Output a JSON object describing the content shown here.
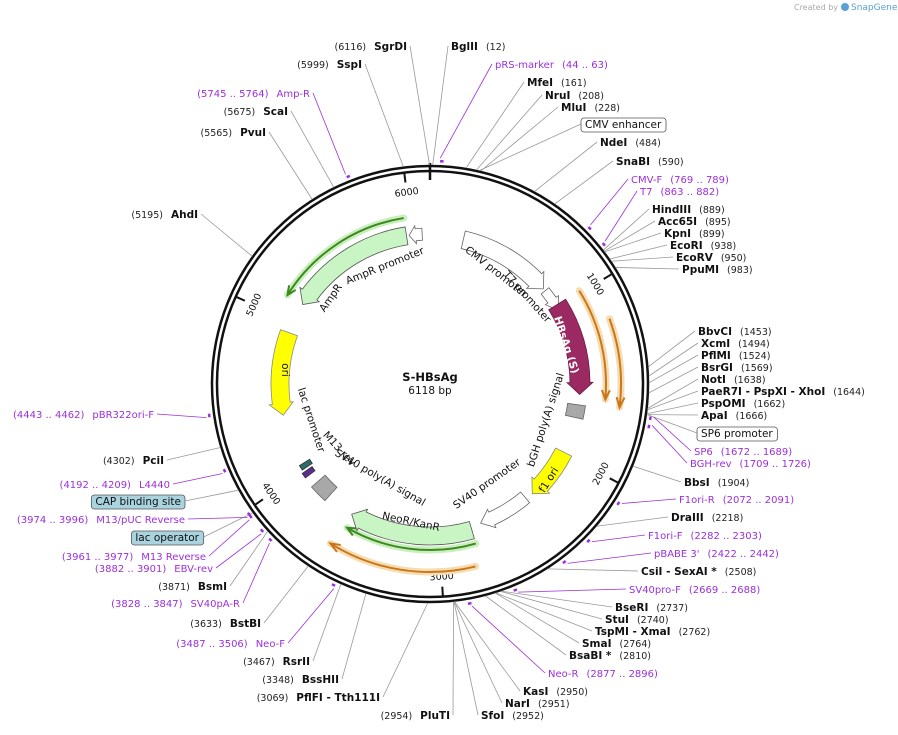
{
  "header": {
    "credit": "Created by",
    "brand": "SnapGene"
  },
  "map": {
    "name": "S-HBsAg",
    "size": "6118 bp",
    "ruler": [
      "1000",
      "2000",
      "3000",
      "4000",
      "5000",
      "6000"
    ],
    "sites": [
      {
        "name": "SgrDI",
        "position": "(6116)",
        "kind": "enzyme"
      },
      {
        "name": "SspI",
        "position": "(5999)",
        "kind": "enzyme"
      },
      {
        "name": "Amp-R",
        "position": "(5745 .. 5764)",
        "kind": "primer"
      },
      {
        "name": "ScaI",
        "position": "(5675)",
        "kind": "enzyme"
      },
      {
        "name": "PvuI",
        "position": "(5565)",
        "kind": "enzyme"
      },
      {
        "name": "AhdI",
        "position": "(5195)",
        "kind": "enzyme"
      },
      {
        "name": "pBR322ori-F",
        "position": "(4443 .. 4462)",
        "kind": "primer"
      },
      {
        "name": "PciI",
        "position": "(4302)",
        "kind": "enzyme"
      },
      {
        "name": "L4440",
        "position": "(4192 .. 4209)",
        "kind": "primer"
      },
      {
        "name": "M13/pUC Reverse",
        "position": "(3974 .. 3996)",
        "kind": "primer"
      },
      {
        "name": "M13 Reverse",
        "position": "(3961 .. 3977)",
        "kind": "primer"
      },
      {
        "name": "EBV-rev",
        "position": "(3882 .. 3901)",
        "kind": "primer"
      },
      {
        "name": "BsmI",
        "position": "(3871)",
        "kind": "enzyme"
      },
      {
        "name": "SV40pA-R",
        "position": "(3828 .. 3847)",
        "kind": "primer"
      },
      {
        "name": "BstBI",
        "position": "(3633)",
        "kind": "enzyme"
      },
      {
        "name": "Neo-F",
        "position": "(3487 .. 3506)",
        "kind": "primer"
      },
      {
        "name": "RsrII",
        "position": "(3467)",
        "kind": "enzyme"
      },
      {
        "name": "BssHII",
        "position": "(3348)",
        "kind": "enzyme"
      },
      {
        "name": "PflFI - Tth111I",
        "position": "(3069)",
        "kind": "enzyme"
      },
      {
        "name": "PluTI",
        "position": "(2954)",
        "kind": "enzyme"
      },
      {
        "name": "SfoI",
        "position": "(2952)",
        "kind": "enzyme"
      },
      {
        "name": "NarI",
        "position": "(2951)",
        "kind": "enzyme"
      },
      {
        "name": "KasI",
        "position": "(2950)",
        "kind": "enzyme"
      },
      {
        "name": "Neo-R",
        "position": "(2877 .. 2896)",
        "kind": "primer"
      },
      {
        "name": "BsaBI *",
        "position": "(2810)",
        "kind": "enzyme"
      },
      {
        "name": "SmaI",
        "position": "(2764)",
        "kind": "enzyme"
      },
      {
        "name": "TspMI - XmaI",
        "position": "(2762)",
        "kind": "enzyme"
      },
      {
        "name": "StuI",
        "position": "(2740)",
        "kind": "enzyme"
      },
      {
        "name": "BseRI",
        "position": "(2737)",
        "kind": "enzyme"
      },
      {
        "name": "SV40pro-F",
        "position": "(2669 .. 2688)",
        "kind": "primer"
      },
      {
        "name": "CsiI - SexAI *",
        "position": "(2508)",
        "kind": "enzyme"
      },
      {
        "name": "pBABE 3'",
        "position": "(2422 .. 2442)",
        "kind": "primer"
      },
      {
        "name": "F1ori-F",
        "position": "(2282 .. 2303)",
        "kind": "primer"
      },
      {
        "name": "DraIII",
        "position": "(2218)",
        "kind": "enzyme"
      },
      {
        "name": "F1ori-R",
        "position": "(2072 .. 2091)",
        "kind": "primer"
      },
      {
        "name": "BbsI",
        "position": "(1904)",
        "kind": "enzyme"
      },
      {
        "name": "BGH-rev",
        "position": "(1709 .. 1726)",
        "kind": "primer"
      },
      {
        "name": "SP6",
        "position": "(1672 .. 1689)",
        "kind": "primer"
      },
      {
        "name": "ApaI",
        "position": "(1666)",
        "kind": "enzyme"
      },
      {
        "name": "PspOMI",
        "position": "(1662)",
        "kind": "enzyme"
      },
      {
        "name": "PaeR7I - PspXI - XhoI",
        "position": "(1644)",
        "kind": "enzyme"
      },
      {
        "name": "NotI",
        "position": "(1638)",
        "kind": "enzyme"
      },
      {
        "name": "BsrGI",
        "position": "(1569)",
        "kind": "enzyme"
      },
      {
        "name": "PflMI",
        "position": "(1524)",
        "kind": "enzyme"
      },
      {
        "name": "XcmI",
        "position": "(1494)",
        "kind": "enzyme"
      },
      {
        "name": "BbvCI",
        "position": "(1453)",
        "kind": "enzyme"
      },
      {
        "name": "PpuMI",
        "position": "(983)",
        "kind": "enzyme"
      },
      {
        "name": "EcoRV",
        "position": "(950)",
        "kind": "enzyme"
      },
      {
        "name": "EcoRI",
        "position": "(938)",
        "kind": "enzyme"
      },
      {
        "name": "KpnI",
        "position": "(899)",
        "kind": "enzyme"
      },
      {
        "name": "Acc65I",
        "position": "(895)",
        "kind": "enzyme"
      },
      {
        "name": "HindIII",
        "position": "(889)",
        "kind": "enzyme"
      },
      {
        "name": "T7",
        "position": "(863 .. 882)",
        "kind": "primer"
      },
      {
        "name": "CMV-F",
        "position": "(769 .. 789)",
        "kind": "primer"
      },
      {
        "name": "SnaBI",
        "position": "(590)",
        "kind": "enzyme"
      },
      {
        "name": "NdeI",
        "position": "(484)",
        "kind": "enzyme"
      },
      {
        "name": "MluI",
        "position": "(228)",
        "kind": "enzyme"
      },
      {
        "name": "NruI",
        "position": "(208)",
        "kind": "enzyme"
      },
      {
        "name": "MfeI",
        "position": "(161)",
        "kind": "enzyme"
      },
      {
        "name": "pRS-marker",
        "position": "(44 .. 63)",
        "kind": "primer"
      },
      {
        "name": "BglII",
        "position": "(12)",
        "kind": "enzyme"
      }
    ],
    "boxed_features": [
      "CMV enhancer",
      "SP6 promoter",
      "lac operator",
      "CAP binding site"
    ],
    "features": [
      "CMV promoter",
      "T7 promoter",
      "HBsAg (S)",
      "bGH poly(A) signal",
      "f1 ori",
      "SV40 promoter",
      "NeoR/KanR",
      "SV40 poly(A) signal",
      "M13 rev",
      "lac promoter",
      "ori",
      "AmpR",
      "AmpR promoter"
    ]
  }
}
